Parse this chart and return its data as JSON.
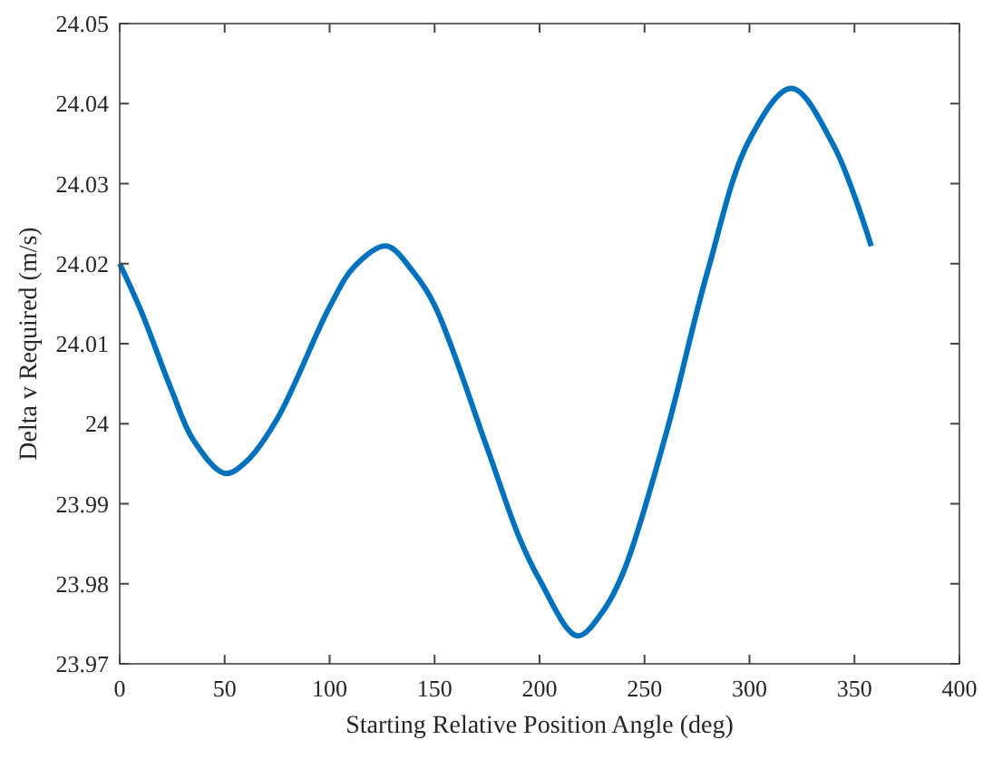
{
  "chart_data": {
    "type": "line",
    "xlabel": "Starting Relative Position Angle (deg)",
    "ylabel": "Delta v Required (m/s)",
    "x": [
      0,
      10,
      25,
      35,
      50,
      60,
      75,
      100,
      112,
      127,
      140,
      150,
      175,
      190,
      200,
      218,
      230,
      240,
      260,
      280,
      300,
      320,
      340,
      358
    ],
    "series": [
      {
        "color": "#0072bd",
        "values": [
          24.02,
          24.0142,
          24.004,
          23.998,
          23.9938,
          23.9952,
          24.0006,
          24.0146,
          24.0197,
          24.0222,
          24.0189,
          24.0148,
          23.997,
          23.986,
          23.9805,
          23.9735,
          23.9765,
          23.9815,
          23.9985,
          24.019,
          24.0355,
          24.0419,
          24.0348,
          24.0222
        ]
      }
    ],
    "xlim": [
      0,
      400
    ],
    "xticks": [
      0,
      50,
      100,
      150,
      200,
      250,
      300,
      350,
      400
    ],
    "ylim": [
      23.97,
      24.05
    ],
    "yticks": [
      23.97,
      23.98,
      23.99,
      24,
      24.01,
      24.02,
      24.03,
      24.04,
      24.05
    ],
    "grid": false,
    "marker": "none",
    "line_style": "solid"
  }
}
